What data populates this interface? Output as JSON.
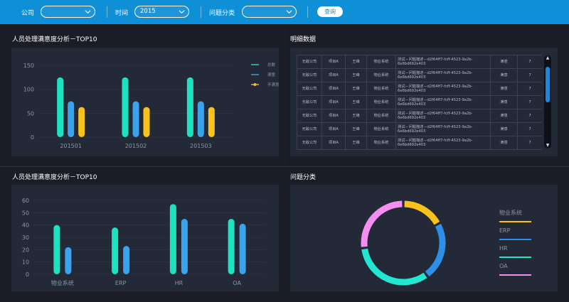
{
  "filters": {
    "company_label": "公司",
    "company_value": "",
    "time_label": "时间",
    "time_value": "2015",
    "category_label": "问题分类",
    "category_value": "",
    "query_label": "查询"
  },
  "sections": {
    "chart1_title": "人员处理满意度分析－TOP10",
    "detail_title": "明细数据",
    "chart2_title": "人员处理满意度分析－TOP10",
    "pie_title": "问题分类"
  },
  "colors": {
    "teal": "#1ee1c0",
    "blue": "#3aa3ee",
    "yellow": "#f7c21b",
    "topbar": "#0f8fd6"
  },
  "chart_data": [
    {
      "type": "bar",
      "categories": [
        "201501",
        "201502",
        "201503"
      ],
      "series": [
        {
          "name": "总数",
          "color": "#1ee1c0",
          "values": [
            125,
            125,
            125
          ]
        },
        {
          "name": "满意",
          "color": "#3aa3ee",
          "values": [
            75,
            75,
            75
          ]
        },
        {
          "name": "不满意",
          "color": "#f7c21b",
          "values": [
            63,
            63,
            63
          ]
        }
      ],
      "y_ticks": [
        "0",
        "50",
        "100",
        "150"
      ],
      "ylim": [
        0,
        150
      ],
      "legend": "top-right",
      "grid": true
    },
    {
      "type": "bar",
      "categories": [
        "物业系统",
        "ERP",
        "HR",
        "OA"
      ],
      "series": [
        {
          "color": "#1ee1c0",
          "values": [
            40,
            38,
            57,
            45
          ]
        },
        {
          "color": "#3aa3ee",
          "values": [
            22,
            23,
            45,
            41
          ]
        }
      ],
      "y_ticks": [
        "0",
        "10",
        "20",
        "30",
        "40",
        "50",
        "60"
      ],
      "ylim": [
        0,
        60
      ],
      "grid": true
    },
    {
      "type": "pie",
      "donut": true,
      "labels": [
        "物业系统",
        "ERP",
        "HR",
        "OA"
      ],
      "colors": [
        "#f7c21b",
        "#2e8fe8",
        "#22e6d0",
        "#f58ef0"
      ],
      "values": [
        17,
        23,
        33,
        27
      ],
      "legend": "right"
    }
  ],
  "table": {
    "rows": [
      [
        "无敌公司",
        "项目A",
        "王峰",
        "物业系统",
        "测试－问题描述－d2f64ff7-fcff-4523-9a2b-6e6bd692e403",
        "满意",
        "7"
      ],
      [
        "无敌公司",
        "项目A",
        "王峰",
        "物业系统",
        "测试－问题描述－d2f64ff7-fcff-4523-9a2b-6e6bd692e403",
        "满意",
        "7"
      ],
      [
        "无敌公司",
        "项目A",
        "王峰",
        "物业系统",
        "测试－问题描述－d2f64ff7-fcff-4523-9a2b-6e6bd692e403",
        "满意",
        "7"
      ],
      [
        "无敌公司",
        "项目A",
        "王峰",
        "物业系统",
        "测试－问题描述－d2f64ff7-fcff-4523-9a2b-6e6bd692e403",
        "满意",
        "7"
      ],
      [
        "无敌公司",
        "项目A",
        "王峰",
        "物业系统",
        "测试－问题描述－d2f64ff7-fcff-4523-9a2b-6e6bd692e403",
        "满意",
        "7"
      ],
      [
        "无敌公司",
        "项目A",
        "王峰",
        "物业系统",
        "测试－问题描述－d2f64ff7-fcff-4523-9a2b-6e6bd692e403",
        "满意",
        "7"
      ],
      [
        "无敌公司",
        "项目A",
        "王峰",
        "物业系统",
        "测试－问题描述－d2f64ff7-fcff-4523-9a2b-6e6bd692e403",
        "满意",
        "7"
      ]
    ]
  }
}
